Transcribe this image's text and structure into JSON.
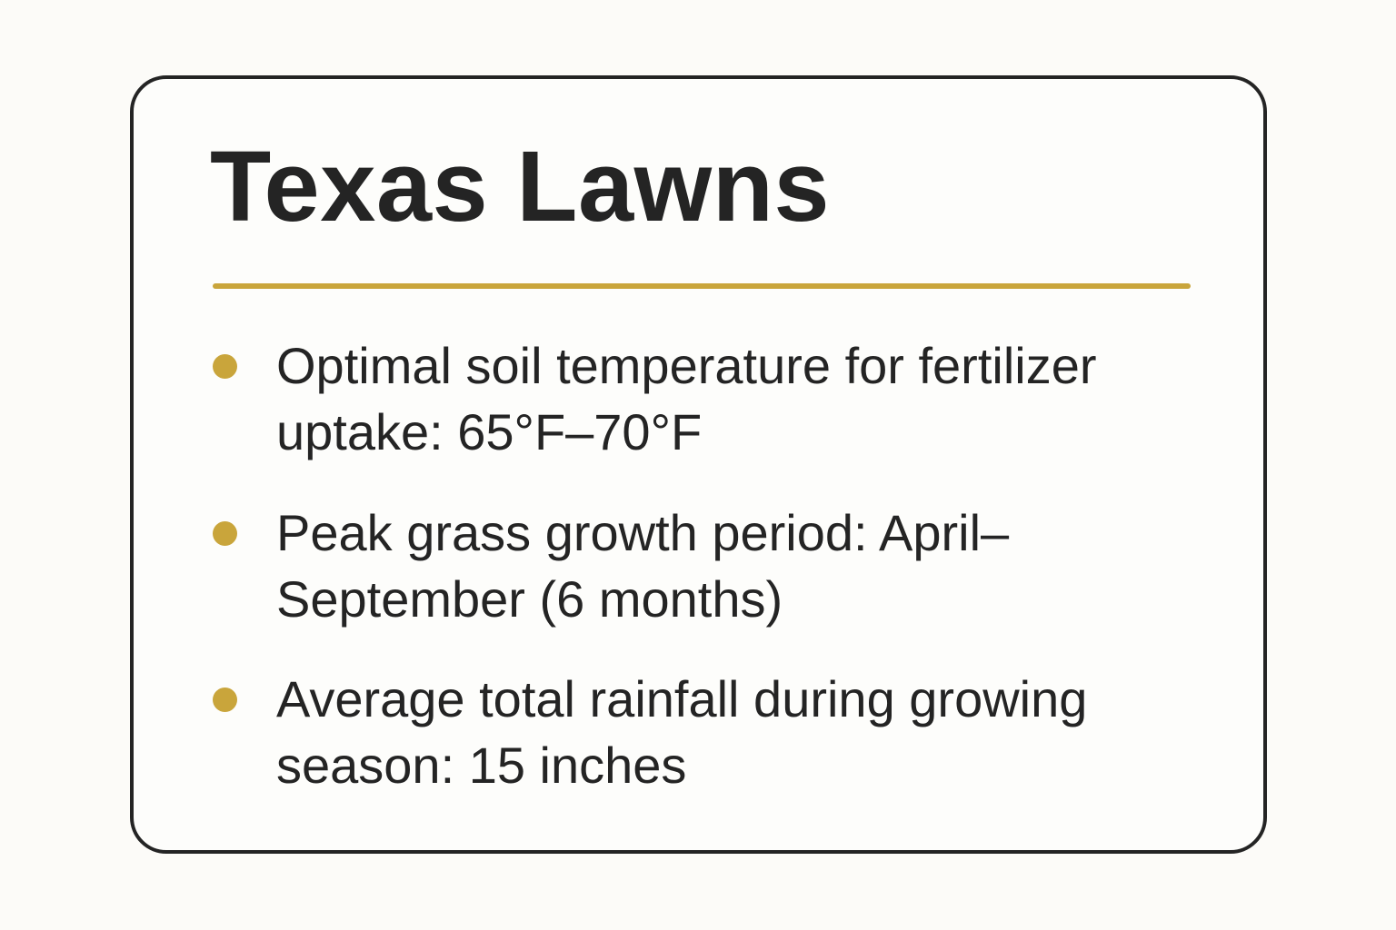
{
  "card": {
    "title": "Texas Lawns",
    "facts": [
      "Optimal soil temperature for fertilizer uptake: 65°F–70°F",
      "Peak grass growth period: April–September (6 months)",
      "Average total rainfall during growing season: 15 inches"
    ]
  },
  "colors": {
    "accent": "#c9a53b",
    "text": "#242424",
    "border": "#242424",
    "background": "#fcfbf8"
  }
}
